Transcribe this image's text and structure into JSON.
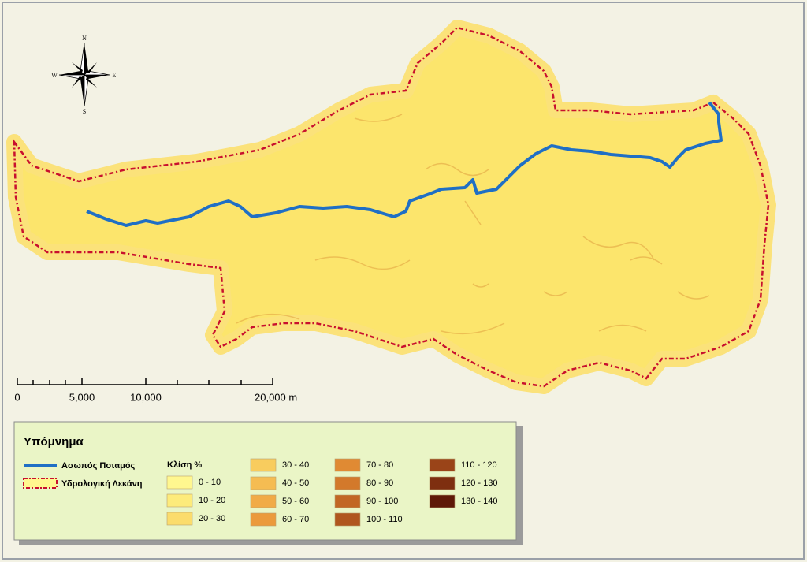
{
  "compass": {
    "n": "N",
    "s": "S",
    "e": "E",
    "w": "W"
  },
  "scale_bar": {
    "labels": [
      "0",
      "5,000",
      "10,000",
      "20,000 m"
    ]
  },
  "legend": {
    "title": "Υπόμνημα",
    "river": {
      "label": "Ασωπός Ποταμός",
      "color": "#1f6fc5"
    },
    "basin": {
      "label": "Υδρολογική Λεκάνη",
      "color": "#c8102e"
    },
    "slope_title": "Κλίση %",
    "classes": [
      {
        "label": "0 - 10",
        "color": "#fff78f"
      },
      {
        "label": "10 - 20",
        "color": "#fdeb7b"
      },
      {
        "label": "20 - 30",
        "color": "#fbdc6c"
      },
      {
        "label": "30 - 40",
        "color": "#f8cc5e"
      },
      {
        "label": "40 - 50",
        "color": "#f5bc52"
      },
      {
        "label": "50 - 60",
        "color": "#f1ab47"
      },
      {
        "label": "60 - 70",
        "color": "#eb9a3c"
      },
      {
        "label": "70 - 80",
        "color": "#e08a33"
      },
      {
        "label": "80 - 90",
        "color": "#d3792b"
      },
      {
        "label": "90 - 100",
        "color": "#c26724"
      },
      {
        "label": "100 - 110",
        "color": "#b0561e"
      },
      {
        "label": "110 - 120",
        "color": "#9a4418"
      },
      {
        "label": "120 - 130",
        "color": "#7e2f10"
      },
      {
        "label": "130 - 140",
        "color": "#5e1808"
      }
    ]
  }
}
